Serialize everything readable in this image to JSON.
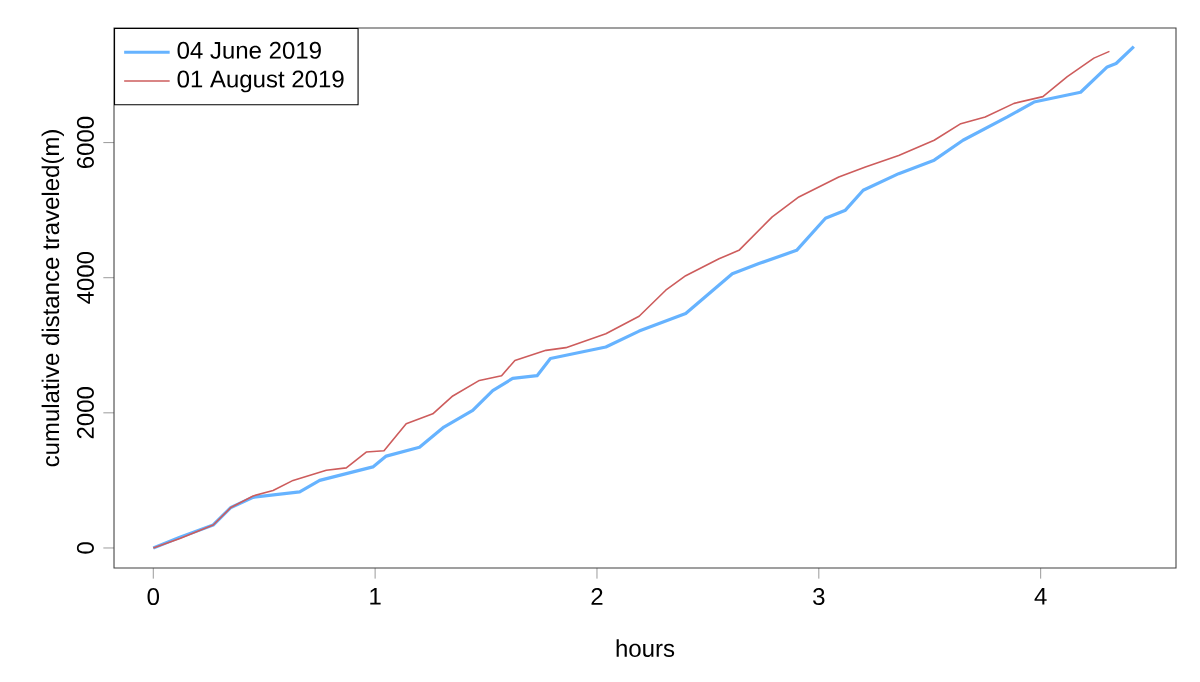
{
  "chart_data": {
    "type": "line",
    "xlabel": "hours",
    "ylabel": "cumulative distance traveled(m)",
    "xlim": [
      -0.177,
      4.61
    ],
    "ylim": [
      -296,
      7696
    ],
    "xticks": [
      0,
      1,
      2,
      3,
      4
    ],
    "yticks": [
      0,
      2000,
      4000,
      6000
    ],
    "legend": "top left",
    "grid": false,
    "marker": "none",
    "line_style": "solid",
    "series": [
      {
        "name": "04 June 2019",
        "color": "#66b3ff",
        "x": [
          0,
          0.12,
          0.27,
          0.35,
          0.45,
          0.66,
          0.75,
          0.99,
          1.05,
          1.2,
          1.31,
          1.44,
          1.53,
          1.62,
          1.73,
          1.79,
          2.04,
          2.19,
          2.4,
          2.61,
          2.73,
          2.9,
          3.03,
          3.12,
          3.2,
          3.36,
          3.52,
          3.65,
          3.85,
          3.97,
          4.18,
          4.3,
          4.34,
          4.42
        ],
        "values": [
          0,
          160,
          340,
          600,
          750,
          830,
          1000,
          1200,
          1360,
          1490,
          1790,
          2035,
          2330,
          2510,
          2550,
          2805,
          2975,
          3210,
          3470,
          4060,
          4210,
          4405,
          4880,
          5000,
          5295,
          5540,
          5740,
          6035,
          6380,
          6600,
          6745,
          7120,
          7170,
          7420
        ]
      },
      {
        "name": "01 August 2019",
        "color": "#cd5c5c",
        "x": [
          0,
          0.12,
          0.27,
          0.35,
          0.45,
          0.54,
          0.63,
          0.78,
          0.87,
          0.96,
          1.04,
          1.14,
          1.26,
          1.35,
          1.47,
          1.57,
          1.63,
          1.77,
          1.86,
          2.04,
          2.19,
          2.31,
          2.4,
          2.55,
          2.64,
          2.79,
          2.91,
          3.09,
          3.21,
          3.36,
          3.52,
          3.64,
          3.75,
          3.88,
          4.01,
          4.12,
          4.24,
          4.31
        ],
        "values": [
          0,
          140,
          340,
          600,
          770,
          850,
          1000,
          1150,
          1185,
          1420,
          1440,
          1840,
          1985,
          2250,
          2480,
          2550,
          2775,
          2925,
          2965,
          3170,
          3430,
          3815,
          4030,
          4280,
          4405,
          4900,
          5195,
          5490,
          5640,
          5810,
          6035,
          6280,
          6380,
          6580,
          6680,
          6975,
          7250,
          7350
        ]
      }
    ]
  }
}
